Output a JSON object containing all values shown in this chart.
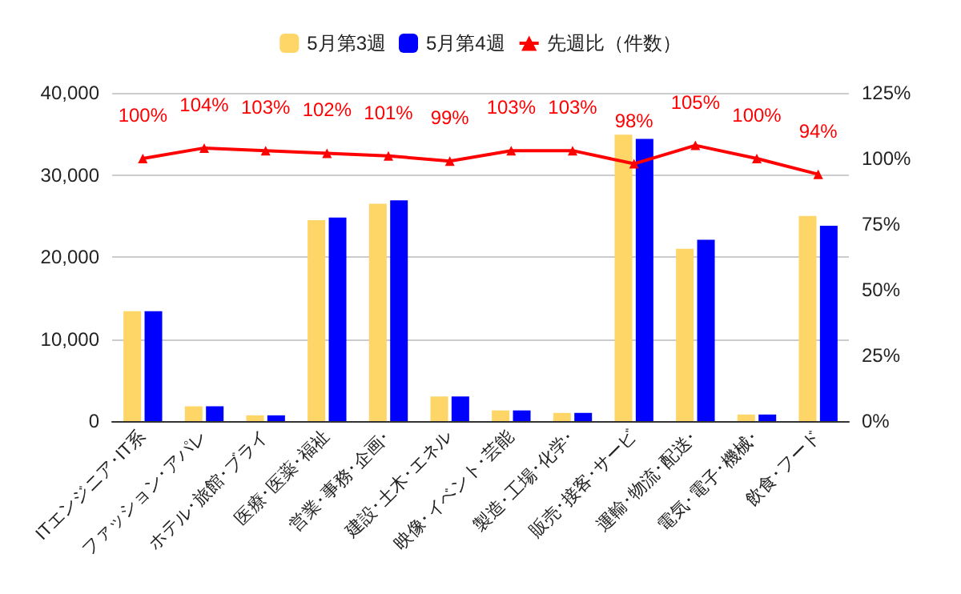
{
  "chart_data": {
    "type": "bar",
    "categories": [
      "ITエンジニア･IT系",
      "ファッション･アパレ",
      "ホテル･旅館･ブライ",
      "医療･医薬･福祉",
      "営業･事務･企画･",
      "建設･土木･エネル",
      "映像･イベント･芸能",
      "製造･工場･化学･",
      "販売･接客･サービ",
      "運輸･物流･配送･",
      "電気･電子･機械･",
      "飲食･フード"
    ],
    "series": [
      {
        "name": "5月第3週",
        "color": "#fdd667",
        "values": [
          13400,
          1800,
          700,
          24500,
          26500,
          3000,
          1300,
          1000,
          34900,
          21000,
          800,
          25000
        ]
      },
      {
        "name": "5月第4週",
        "color": "#0000ff",
        "values": [
          13400,
          1800,
          700,
          24800,
          26900,
          3000,
          1300,
          1000,
          34400,
          22100,
          800,
          23800
        ]
      },
      {
        "name": "先週比（件数）",
        "type": "line",
        "axis": "y2",
        "color": "#ff0000",
        "marker": "triangle",
        "values": [
          100,
          104,
          103,
          102,
          101,
          99,
          103,
          103,
          98,
          105,
          100,
          94
        ],
        "value_labels": [
          "100%",
          "104%",
          "103%",
          "102%",
          "101%",
          "99%",
          "103%",
          "103%",
          "98%",
          "105%",
          "100%",
          "94%"
        ]
      }
    ],
    "ylim": [
      0,
      40000
    ],
    "yticks": [
      0,
      {
        "value": 10000,
        "label": "10,000"
      },
      {
        "value": 20000,
        "label": "20,000"
      },
      {
        "value": 30000,
        "label": "30,000"
      },
      {
        "value": 40000,
        "label": "40,000"
      }
    ],
    "y2lim": [
      0,
      125
    ],
    "y2ticks": [
      {
        "value": 0,
        "label": "0%"
      },
      {
        "value": 25,
        "label": "25%"
      },
      {
        "value": 50,
        "label": "50%"
      },
      {
        "value": 75,
        "label": "75%"
      },
      {
        "value": 100,
        "label": "100%"
      },
      {
        "value": 125,
        "label": "125%"
      }
    ],
    "grid": "y",
    "legend": "top"
  }
}
